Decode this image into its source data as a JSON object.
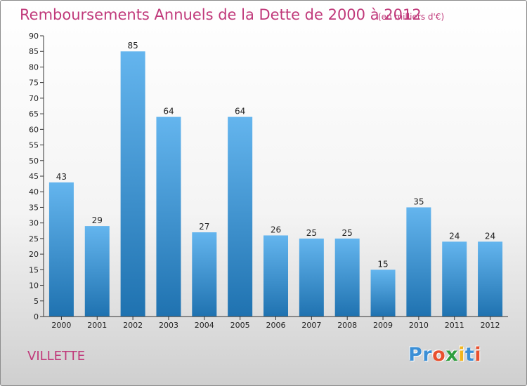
{
  "header": {
    "title": "Remboursements Annuels de la Dette de 2000 à 2012",
    "unit": "(en milliers d'€)"
  },
  "footer": {
    "commune": "VILLETTE",
    "logo_letters": [
      "P",
      "r",
      "o",
      "x",
      "i",
      "t",
      "i"
    ],
    "logo_colors": [
      "#3b8fd6",
      "#3b8fd6",
      "#e8502e",
      "#2e9e3e",
      "#f2b51d",
      "#3b8fd6",
      "#e8502e"
    ]
  },
  "colors": {
    "title": "#c0397a",
    "bar_light": "#64b5ee",
    "bar_dark": "#1f72b0"
  },
  "chart_data": {
    "type": "bar",
    "title": "Remboursements Annuels de la Dette de 2000 à 2012",
    "unit": "(en milliers d'€)",
    "categories": [
      "2000",
      "2001",
      "2002",
      "2003",
      "2004",
      "2005",
      "2006",
      "2007",
      "2008",
      "2009",
      "2010",
      "2011",
      "2012"
    ],
    "values": [
      43,
      29,
      85,
      64,
      27,
      64,
      26,
      25,
      25,
      15,
      35,
      24,
      24
    ],
    "ylim": [
      0,
      90
    ],
    "yticks": [
      0,
      5,
      10,
      15,
      20,
      25,
      30,
      35,
      40,
      45,
      50,
      55,
      60,
      65,
      70,
      75,
      80,
      85,
      90
    ],
    "grid": false,
    "legend": "none",
    "data_labels": true
  }
}
